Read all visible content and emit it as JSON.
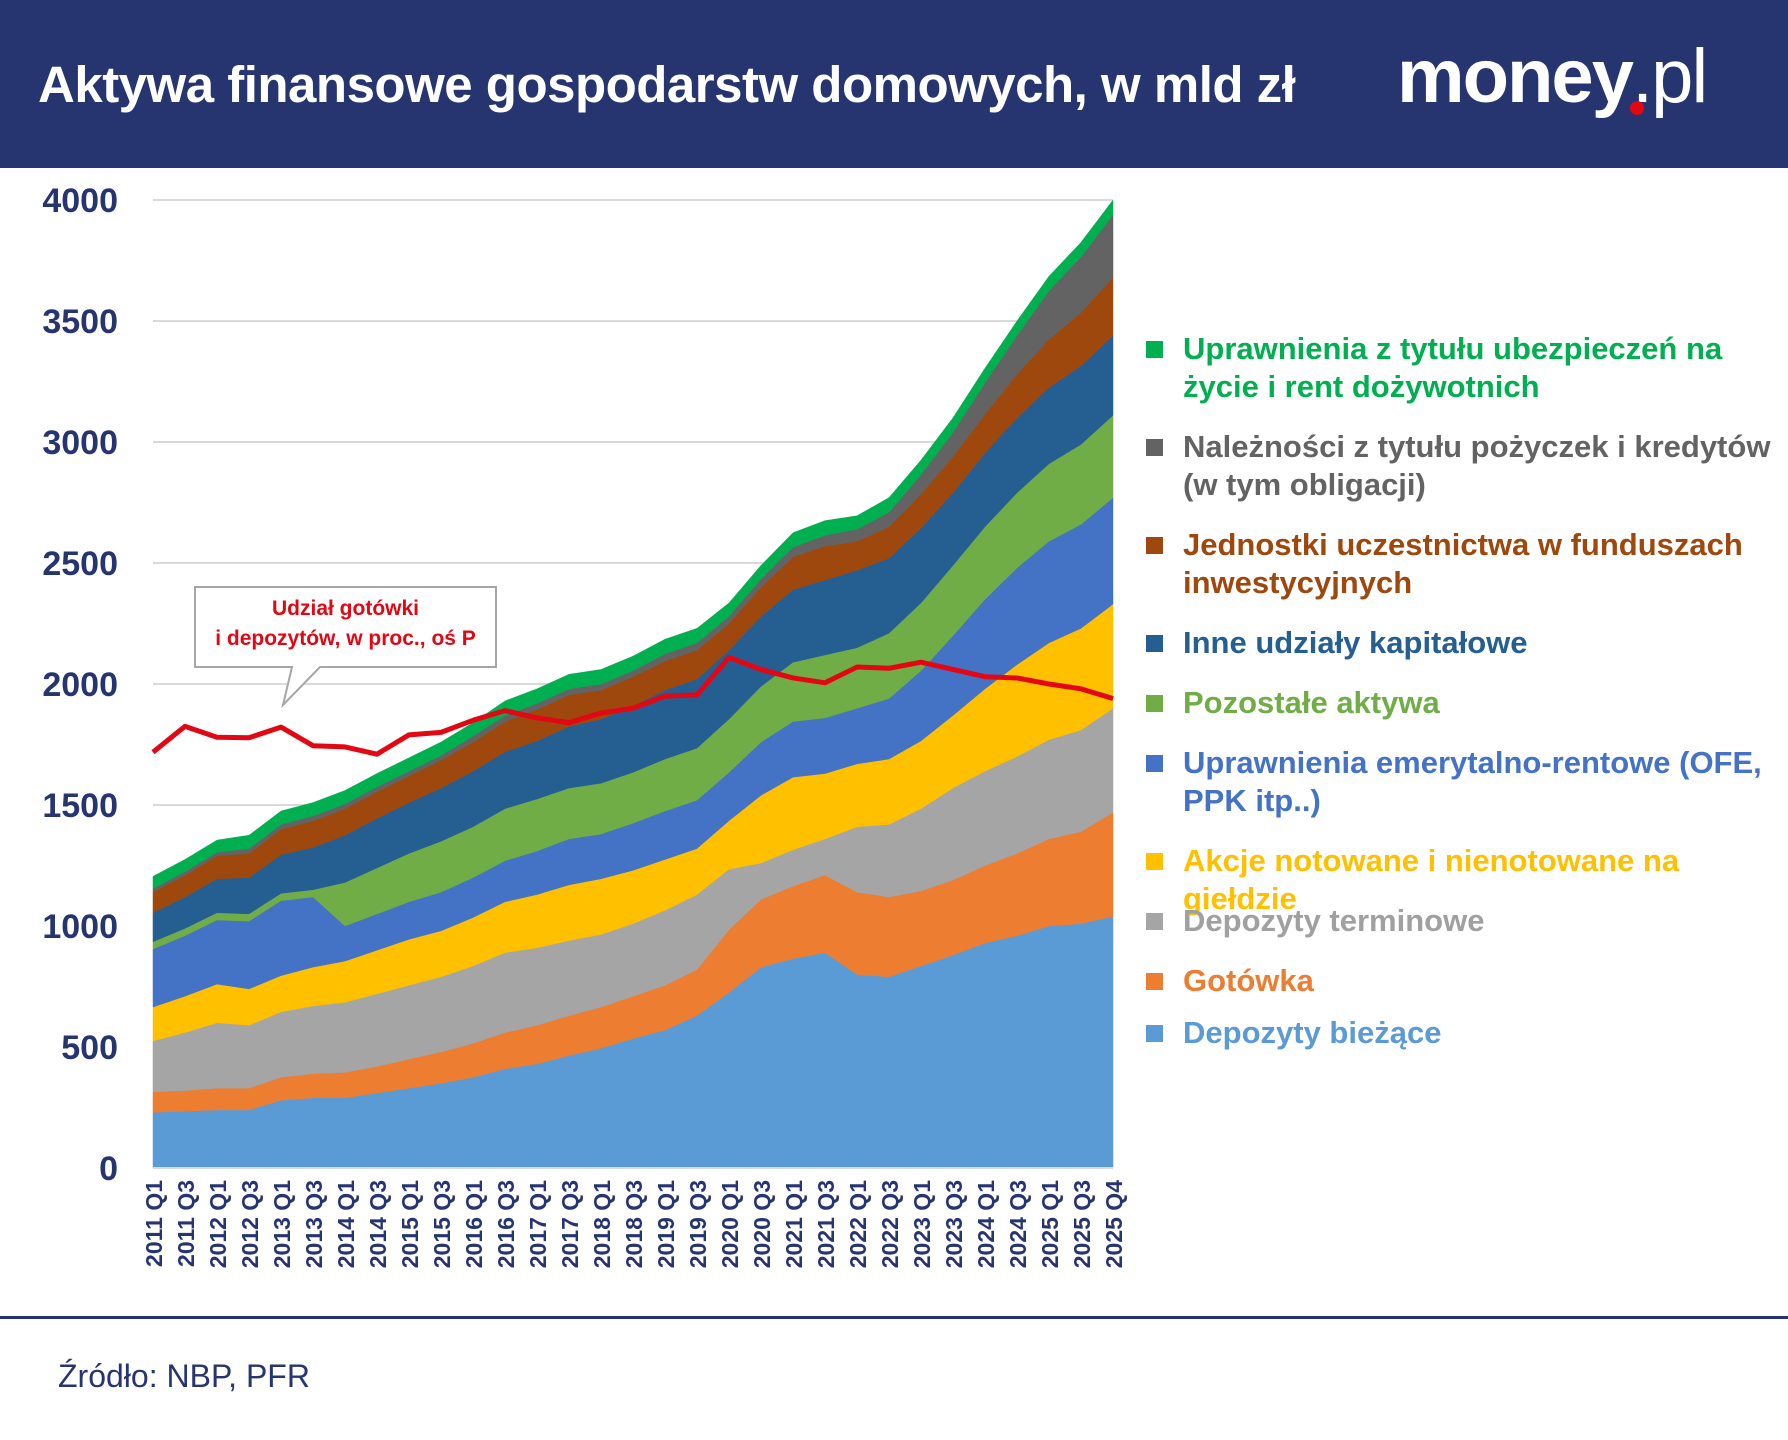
{
  "header": {
    "title": "Aktywa finansowe gospodarstw domowych, w mld zł",
    "logo_text": "money.pl"
  },
  "source": "Źródło: NBP, PFR",
  "callout": {
    "line1": "Udział gotówki",
    "line2": "i depozytów, w proc., oś P"
  },
  "colors": {
    "header_bg": "#263470",
    "axis_text": "#263470",
    "line": "#e30613"
  },
  "chart_data": {
    "type": "area",
    "stacked": true,
    "ylim": [
      0,
      4000
    ],
    "yticks": [
      "4000",
      "3500",
      "3000",
      "2500",
      "2000",
      "1500",
      "1000",
      "500",
      "0"
    ],
    "xlabels": [
      "2011 Q1",
      "2011 Q3",
      "2012 Q1",
      "2012 Q3",
      "2013 Q1",
      "2013 Q3",
      "2014 Q1",
      "2014 Q3",
      "2015 Q1",
      "2015 Q3",
      "2016 Q1",
      "2016 Q3",
      "2017 Q1",
      "2017 Q3",
      "2018 Q1",
      "2018 Q3",
      "2019 Q1",
      "2019 Q3",
      "2020 Q1",
      "2020 Q3",
      "2021 Q1",
      "2021 Q3",
      "2022 Q1",
      "2022 Q3",
      "2023 Q1",
      "2023 Q3",
      "2024 Q1",
      "2024 Q3",
      "2025 Q1",
      "2025 Q3",
      "2025 Q4"
    ],
    "series": [
      {
        "name": "Depozyty bieżące",
        "color": "#5b9bd5",
        "values": [
          230,
          235,
          240,
          240,
          280,
          290,
          290,
          310,
          330,
          350,
          375,
          410,
          430,
          465,
          495,
          535,
          570,
          630,
          725,
          830,
          865,
          890,
          800,
          790,
          835,
          880,
          930,
          960,
          1000,
          1010,
          1040
        ]
      },
      {
        "name": "Gotówka",
        "color": "#ed7d31",
        "values": [
          85,
          85,
          90,
          90,
          95,
          100,
          105,
          110,
          120,
          130,
          140,
          150,
          160,
          165,
          170,
          175,
          185,
          190,
          260,
          280,
          300,
          320,
          340,
          330,
          310,
          310,
          320,
          340,
          360,
          380,
          430
        ]
      },
      {
        "name": "Depozyty terminowe",
        "color": "#a5a5a5",
        "values": [
          210,
          240,
          270,
          260,
          270,
          280,
          290,
          300,
          305,
          310,
          320,
          330,
          320,
          310,
          300,
          300,
          310,
          310,
          250,
          150,
          150,
          150,
          270,
          300,
          340,
          380,
          390,
          400,
          410,
          420,
          430
        ]
      },
      {
        "name": "Akcje notowane i nienotowane na giełdzie",
        "color": "#ffc000",
        "values": [
          140,
          150,
          160,
          150,
          150,
          160,
          170,
          180,
          190,
          190,
          200,
          210,
          220,
          230,
          230,
          220,
          210,
          190,
          200,
          280,
          300,
          270,
          260,
          270,
          280,
          300,
          340,
          380,
          400,
          420,
          430
        ]
      },
      {
        "name": "Uprawnienia emerytalno-rentowe (OFE, PPK itp..)",
        "color": "#4472c4",
        "values": [
          240,
          250,
          265,
          280,
          310,
          290,
          145,
          150,
          155,
          160,
          165,
          170,
          180,
          190,
          185,
          195,
          200,
          200,
          200,
          220,
          230,
          230,
          230,
          250,
          290,
          330,
          370,
          400,
          420,
          430,
          440
        ]
      },
      {
        "name": "Pozostałe aktywa",
        "color": "#70ad47",
        "values": [
          30,
          30,
          30,
          30,
          30,
          30,
          180,
          190,
          200,
          210,
          210,
          215,
          215,
          210,
          210,
          210,
          215,
          215,
          220,
          230,
          245,
          260,
          250,
          270,
          280,
          290,
          300,
          310,
          320,
          330,
          340
        ]
      },
      {
        "name": "Inne udziały kapitałowe",
        "color": "#255e91",
        "values": [
          120,
          130,
          140,
          150,
          160,
          175,
          195,
          205,
          210,
          220,
          230,
          235,
          240,
          255,
          265,
          275,
          285,
          285,
          285,
          290,
          300,
          310,
          320,
          310,
          310,
          300,
          305,
          310,
          315,
          325,
          330
        ]
      },
      {
        "name": "Jednostki uczestnictwa w funduszach inwestycyjnych",
        "color": "#9e480e",
        "values": [
          85,
          90,
          95,
          100,
          105,
          110,
          110,
          110,
          110,
          115,
          120,
          125,
          130,
          130,
          120,
          120,
          120,
          120,
          110,
          120,
          135,
          140,
          120,
          130,
          140,
          150,
          160,
          180,
          200,
          220,
          240
        ]
      },
      {
        "name": "Należności z tytułu pożyczek i kredytów (w tym obligacji)",
        "color": "#636363",
        "values": [
          15,
          15,
          15,
          20,
          20,
          20,
          20,
          20,
          20,
          20,
          25,
          25,
          25,
          25,
          25,
          25,
          30,
          30,
          30,
          35,
          40,
          45,
          50,
          60,
          80,
          100,
          130,
          160,
          200,
          230,
          260
        ]
      },
      {
        "name": "Uprawnienia z tytułu ubezpieczeń na życie i rent dożywotnich",
        "color": "#00b050",
        "values": [
          50,
          50,
          50,
          55,
          55,
          55,
          55,
          55,
          55,
          55,
          55,
          60,
          60,
          60,
          60,
          60,
          60,
          60,
          55,
          55,
          60,
          60,
          55,
          60,
          60,
          60,
          60,
          60,
          60,
          60,
          60
        ]
      }
    ],
    "line": {
      "name": "Udział gotówki i depozytów, w proc., oś P",
      "color": "#e30613",
      "values": [
        1718,
        1825,
        1780,
        1778,
        1822,
        1745,
        1740,
        1710,
        1790,
        1800,
        1850,
        1890,
        1860,
        1840,
        1880,
        1900,
        1950,
        1955,
        2110,
        2060,
        2025,
        2005,
        2070,
        2065,
        2090,
        2060,
        2030,
        2025,
        2000,
        1980,
        1940
      ]
    }
  }
}
